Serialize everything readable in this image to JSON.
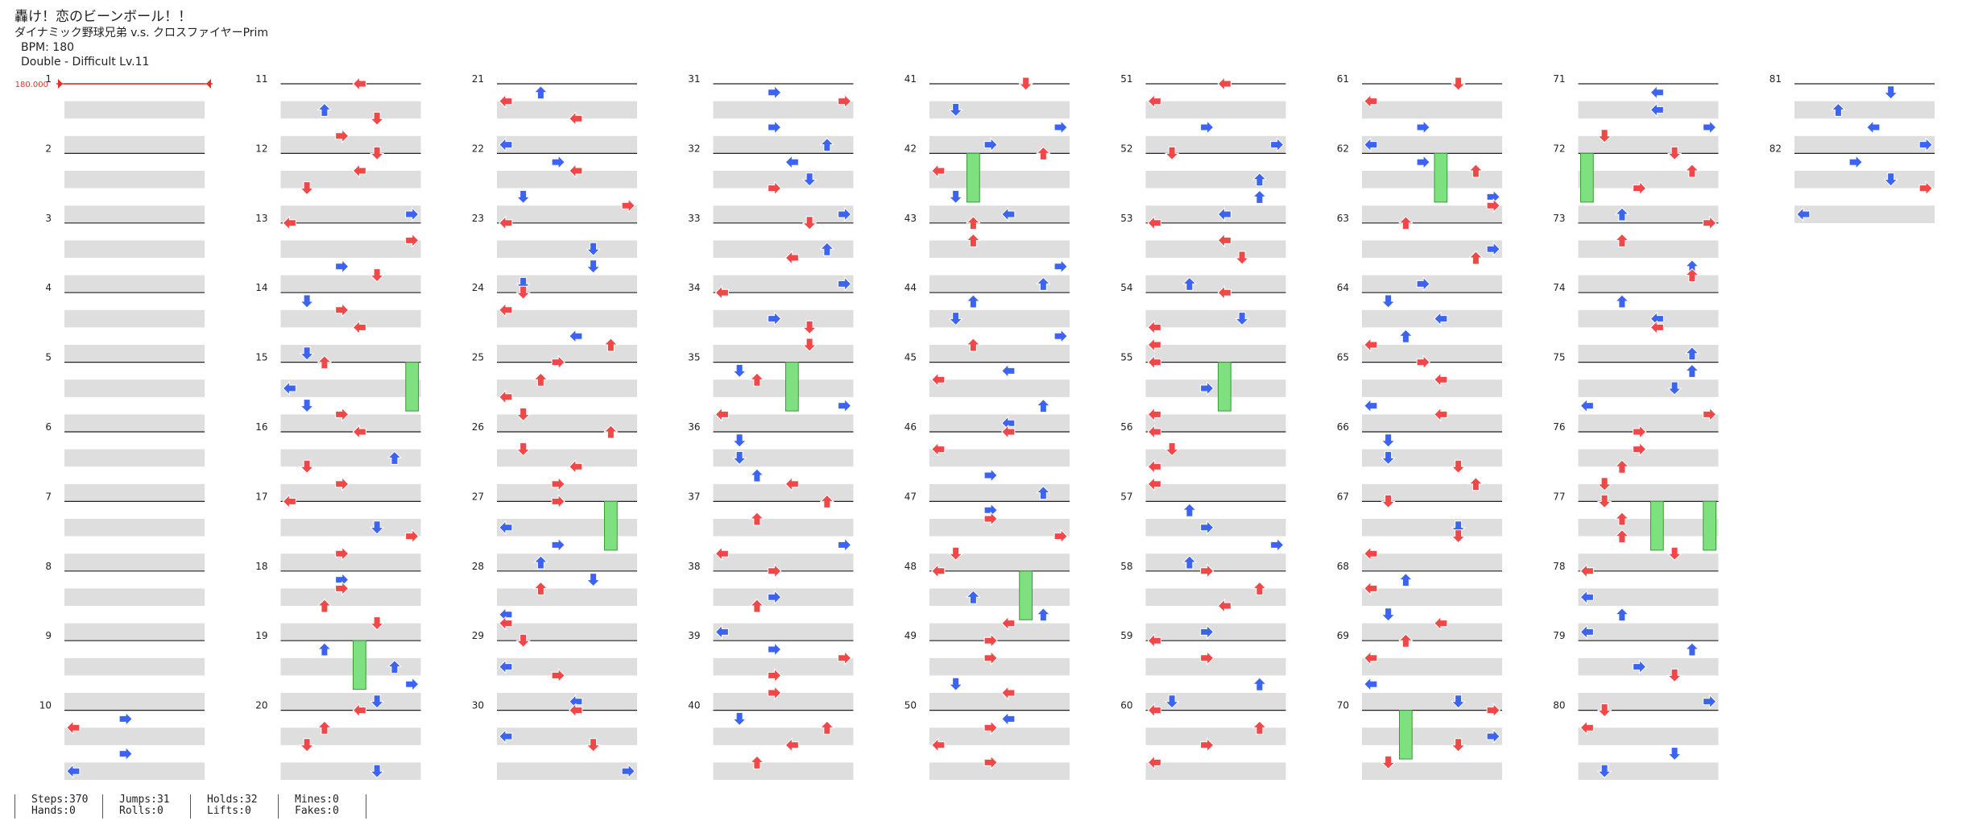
{
  "header": {
    "title": "轟け！恋のビーンボール！！",
    "artist": "ダイナミック野球兄弟 v.s. クロスファイヤーPrim",
    "bpm_line": "BPM: 180",
    "difficulty_line": "Double - Difficult  Lv.11"
  },
  "bpm_marker": "180.000",
  "colors": {
    "tap_red": "#f04848",
    "tap_blue": "#3c64f0",
    "tap_purple": "#a050f0",
    "hold_green": "#7ee07e",
    "hold_line": "#3a9a3a",
    "stripe": "#dedede",
    "beat_line": "#222222",
    "bpm_red": "#e03030"
  },
  "chart": {
    "columns": 9,
    "measures_per_column": 10,
    "total_measures": 82,
    "lanes": 8
  },
  "stats": {
    "steps": "Steps:370",
    "hands": "Hands:0",
    "jumps": "Jumps:31",
    "rolls": "Rolls:0",
    "holds": "Holds:32",
    "lifts": "Lifts:0",
    "mines": "Mines:0",
    "fakes": "Fakes:0"
  }
}
